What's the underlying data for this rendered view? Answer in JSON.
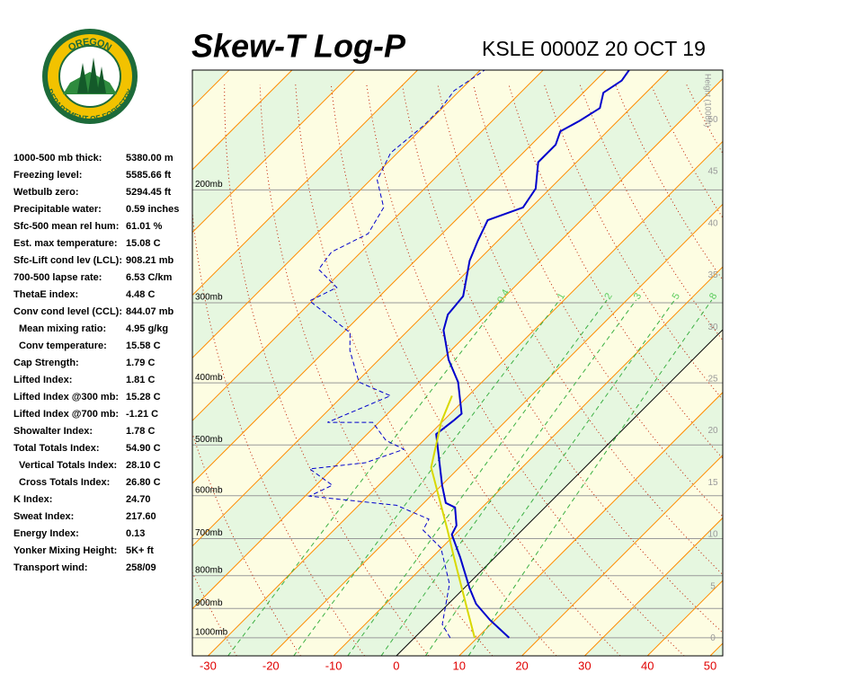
{
  "logo": {
    "top": "OREGON",
    "bottom": "DEPARTMENT OF FORESTRY"
  },
  "indices": [
    [
      "1000-500 mb thick:",
      "5380.00 m"
    ],
    [
      "Freezing level:",
      "5585.66 ft"
    ],
    [
      "Wetbulb zero:",
      "5294.45 ft"
    ],
    [
      "Precipitable water:",
      "0.59 inches"
    ],
    [
      "Sfc-500 mean rel hum:",
      "61.01 %"
    ],
    [
      "Est. max temperature:",
      "15.08 C"
    ],
    [
      "Sfc-Lift cond lev (LCL):",
      "908.21 mb"
    ],
    [
      "700-500 lapse rate:",
      "6.53 C/km"
    ],
    [
      "ThetaE index:",
      "4.48 C"
    ],
    [
      "Conv cond level (CCL):",
      "844.07 mb"
    ],
    [
      "Mean mixing ratio:",
      "4.95 g/kg"
    ],
    [
      "Conv temperature:",
      "15.58 C"
    ],
    [
      "Cap Strength:",
      "1.79 C"
    ],
    [
      "Lifted Index:",
      "1.81 C"
    ],
    [
      "Lifted Index @300 mb:",
      "15.28 C"
    ],
    [
      "Lifted Index @700 mb:",
      "-1.21 C"
    ],
    [
      "Showalter Index:",
      "1.78 C"
    ],
    [
      "Total Totals Index:",
      "54.90 C"
    ],
    [
      "Vertical Totals Index:",
      "28.10 C"
    ],
    [
      "Cross Totals Index:",
      "26.80 C"
    ],
    [
      "K Index:",
      "24.70"
    ],
    [
      "Sweat Index:",
      "217.60"
    ],
    [
      "Energy Index:",
      "0.13"
    ],
    [
      "Yonker Mixing Height:",
      "5K+ ft"
    ],
    [
      "Transport wind:",
      "258/09"
    ]
  ],
  "chart_data": {
    "type": "skewt",
    "title": "Skew-T Log-P",
    "subtitle": "KSLE 0000Z 20 OCT 19",
    "xlim": [
      -32.5,
      52
    ],
    "xticks": [
      -30,
      -20,
      -10,
      0,
      10,
      20,
      30,
      40,
      50
    ],
    "ylim": [
      1067,
      130
    ],
    "ylog": true,
    "yticks": [
      {
        "value": 1000,
        "label": "1000mb"
      },
      {
        "value": 900,
        "label": "900mb"
      },
      {
        "value": 800,
        "label": "800mb"
      },
      {
        "value": 700,
        "label": "700mb"
      },
      {
        "value": 600,
        "label": "600mb"
      },
      {
        "value": 500,
        "label": "500mb"
      },
      {
        "value": 400,
        "label": "400mb"
      },
      {
        "value": 300,
        "label": "300mb"
      },
      {
        "value": 200,
        "label": "200mb"
      }
    ],
    "y2label": "Height (1000ft)",
    "y2lim": [
      -1.7,
      54.8
    ],
    "y2ticks": [
      0,
      5,
      10,
      15,
      20,
      25,
      30,
      35,
      40,
      45,
      50
    ],
    "isotherm_step": 10,
    "dry_adiabat_step": 10,
    "mixing_ratios": [
      0.4,
      1,
      2,
      3,
      5,
      8
    ],
    "series": [
      {
        "color": "#0000cc",
        "style": "solid",
        "x": [
          15.1,
          9.2,
          4.4,
          0.9,
          -5.6,
          -10.5,
          -11.2,
          -14.3,
          -16.5,
          -19.9,
          -29.0,
          -28.4,
          -28.2,
          -33.8,
          -38.9,
          -44.4,
          -46.2,
          -46.7,
          -51.3,
          -53.2,
          -54.9,
          -51.3,
          -52.3,
          -56.1,
          -56.1,
          -57.5,
          -56.1,
          -54.9,
          -56.8,
          -55.8,
          -56.3
        ],
        "values": [
          1000,
          938,
          885,
          837,
          748,
          690,
          668,
          626,
          616,
          578,
          481,
          458,
          447,
          399,
          368,
          331,
          313,
          293,
          258,
          240,
          223,
          213,
          199,
          181,
          170,
          162,
          156,
          149,
          141,
          135,
          130
        ]
      },
      {
        "color": "#0000cc",
        "style": "dashed",
        "x": [
          5.7,
          2.3,
          -3.0,
          -10.1,
          -15.8,
          -16.6,
          -24.0,
          -39.3,
          -37.4,
          -43.6,
          -35.7,
          -31.7,
          -36.0,
          -41.0,
          -48.2,
          -42.4,
          -49.6,
          -56.1,
          -58.9,
          -70.4,
          -68.2,
          -74.0,
          -74.7,
          -71.8,
          -73.5,
          -78.9,
          -81.1,
          -80.2,
          -80.2,
          -80.9,
          -79.3
        ],
        "values": [
          1000,
          953,
          824,
          724,
          679,
          653,
          621,
          601,
          578,
          545,
          533,
          508,
          492,
          461,
          461,
          419,
          399,
          356,
          334,
          298,
          284,
          266,
          250,
          234,
          213,
          193,
          175,
          159,
          149,
          140,
          130
        ]
      },
      {
        "color": "#d8d800",
        "style": "solid",
        "x": [
          9.6,
          4.2,
          -6.6,
          -11.9,
          -24.5,
          -30.1,
          -32.6
        ],
        "values": [
          1000,
          908,
          748,
          679,
          542,
          461,
          419
        ]
      }
    ]
  }
}
